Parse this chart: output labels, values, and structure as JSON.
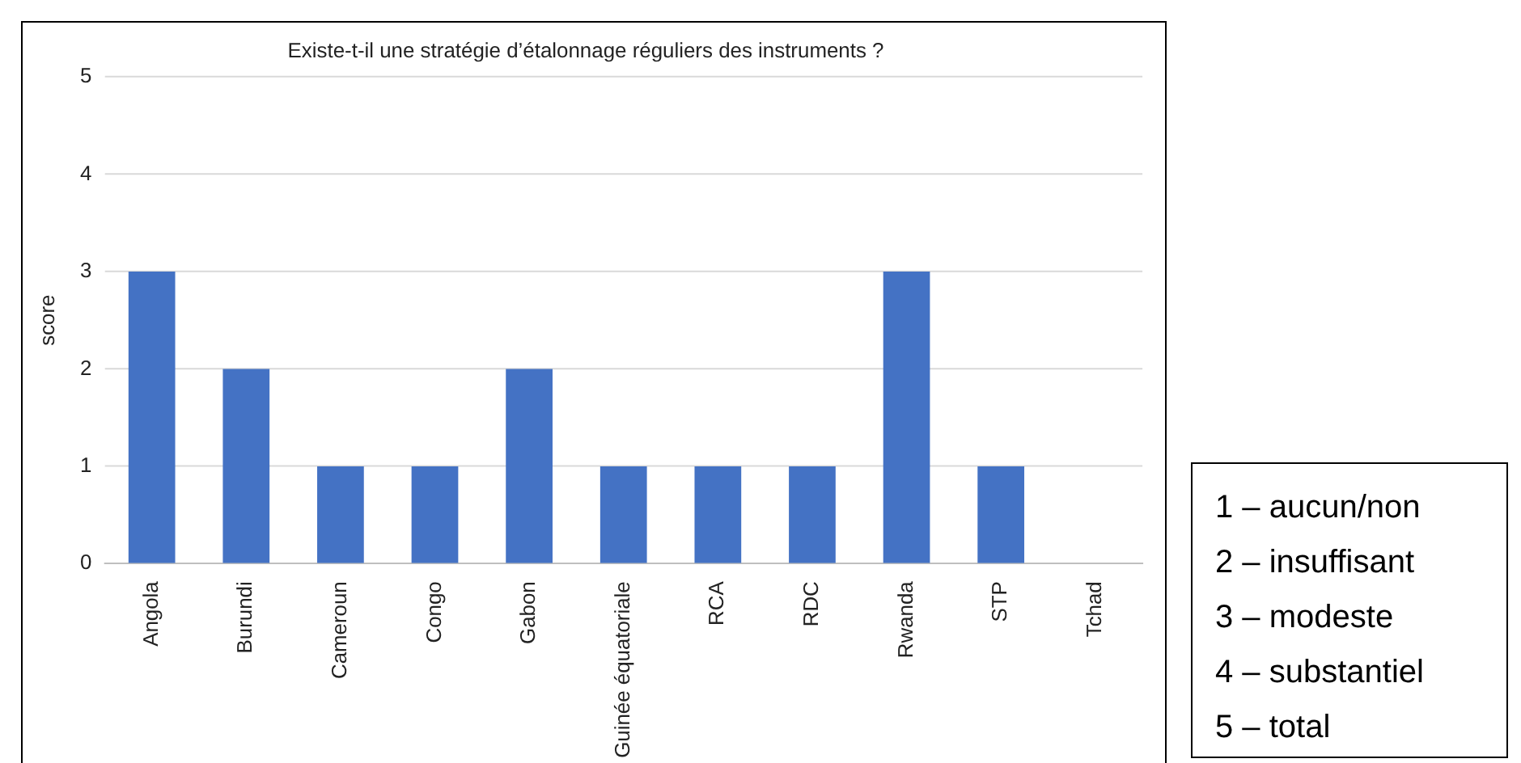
{
  "chart_data": {
    "type": "bar",
    "title": "Existe-t-il une stratégie d’étalonnage réguliers des instruments ?",
    "ylabel": "score",
    "categories": [
      "Angola",
      "Burundi",
      "Cameroun",
      "Congo",
      "Gabon",
      "Guinée équatoriale",
      "RCA",
      "RDC",
      "Rwanda",
      "STP",
      "Tchad"
    ],
    "values": [
      3,
      2,
      1,
      1,
      2,
      1,
      1,
      1,
      3,
      1,
      0
    ],
    "color": "#4472c4",
    "ylim": [
      0,
      5
    ],
    "yticks": [
      0,
      1,
      2,
      3,
      4,
      5
    ],
    "grid": "y",
    "annotations": [
      "1 – aucun/non",
      "2 – insuffisant",
      "3 – modeste",
      "4 – substantiel",
      "5 – total"
    ]
  }
}
